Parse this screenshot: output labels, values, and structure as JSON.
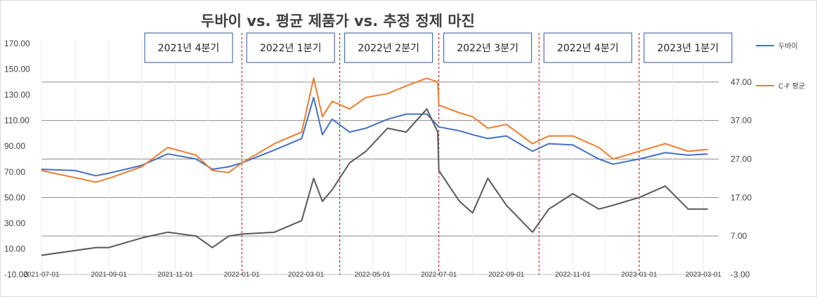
{
  "chart_data": {
    "type": "line",
    "title": "두바이 vs. 평균 제품가 vs. 추정 정제 마진",
    "x_ticks": [
      "2021-07-01",
      "2021-09-01",
      "2021-11-01",
      "2022-01-01",
      "2022-03-01",
      "2022-05-01",
      "2022-07-01",
      "2022-09-01",
      "2022-11-01",
      "2023-01-01",
      "2023-03-01"
    ],
    "x_range": [
      "2021-07-01",
      "2023-03-15"
    ],
    "y_left": {
      "ylim": [
        -10,
        170
      ],
      "ticks": [
        "-10.00",
        "10.00",
        "30.00",
        "50.00",
        "70.00",
        "90.00",
        "110.00",
        "130.00",
        "150.00",
        "170.00"
      ]
    },
    "y_right": {
      "ylim": [
        -3,
        57
      ],
      "ticks": [
        "-3.00",
        "7.00",
        "17.00",
        "27.00",
        "37.00",
        "47.00"
      ]
    },
    "quarters": [
      {
        "label": "2021년 4분기",
        "start": "2021-10-01"
      },
      {
        "label": "2022년 1분기",
        "start": "2022-01-01"
      },
      {
        "label": "2022년 2분기",
        "start": "2022-04-01"
      },
      {
        "label": "2022년 3분기",
        "start": "2022-07-01"
      },
      {
        "label": "2022년 4분기",
        "start": "2022-10-01"
      },
      {
        "label": "2023년 1분기",
        "start": "2023-01-01"
      }
    ],
    "series": [
      {
        "name": "두바이",
        "axis": "left",
        "color": "#4472c4",
        "points": [
          [
            "2021-07-01",
            72
          ],
          [
            "2021-08-01",
            71
          ],
          [
            "2021-08-20",
            67
          ],
          [
            "2021-09-01",
            69
          ],
          [
            "2021-10-01",
            75
          ],
          [
            "2021-10-25",
            84
          ],
          [
            "2021-11-20",
            80
          ],
          [
            "2021-12-05",
            72
          ],
          [
            "2021-12-20",
            74
          ],
          [
            "2022-01-01",
            77
          ],
          [
            "2022-01-31",
            87
          ],
          [
            "2022-02-25",
            96
          ],
          [
            "2022-03-08",
            128
          ],
          [
            "2022-03-16",
            99
          ],
          [
            "2022-03-25",
            111
          ],
          [
            "2022-04-10",
            101
          ],
          [
            "2022-04-25",
            104
          ],
          [
            "2022-05-15",
            111
          ],
          [
            "2022-06-01",
            115
          ],
          [
            "2022-06-20",
            115
          ],
          [
            "2022-07-01",
            105
          ],
          [
            "2022-07-20",
            102
          ],
          [
            "2022-08-01",
            99
          ],
          [
            "2022-08-15",
            96
          ],
          [
            "2022-09-01",
            98
          ],
          [
            "2022-09-25",
            86
          ],
          [
            "2022-10-10",
            92
          ],
          [
            "2022-11-01",
            91
          ],
          [
            "2022-11-25",
            80
          ],
          [
            "2022-12-08",
            76
          ],
          [
            "2023-01-01",
            80
          ],
          [
            "2023-01-25",
            85
          ],
          [
            "2023-02-15",
            83
          ],
          [
            "2023-03-05",
            84
          ]
        ]
      },
      {
        "name": "C-F 평균",
        "axis": "right",
        "color": "#ed7d31",
        "points": [
          [
            "2021-07-01",
            24
          ],
          [
            "2021-08-20",
            21
          ],
          [
            "2021-09-01",
            22
          ],
          [
            "2021-10-01",
            25
          ],
          [
            "2021-10-25",
            30
          ],
          [
            "2021-11-20",
            28
          ],
          [
            "2021-12-05",
            24
          ],
          [
            "2021-12-20",
            23.5
          ],
          [
            "2022-01-01",
            26
          ],
          [
            "2022-01-31",
            31
          ],
          [
            "2022-02-25",
            34
          ],
          [
            "2022-03-08",
            48
          ],
          [
            "2022-03-16",
            38
          ],
          [
            "2022-03-25",
            42
          ],
          [
            "2022-04-10",
            40
          ],
          [
            "2022-04-25",
            43
          ],
          [
            "2022-05-15",
            44
          ],
          [
            "2022-06-01",
            46
          ],
          [
            "2022-06-20",
            48
          ],
          [
            "2022-06-30",
            47
          ],
          [
            "2022-07-01",
            41
          ],
          [
            "2022-07-20",
            39
          ],
          [
            "2022-08-01",
            38
          ],
          [
            "2022-08-15",
            35
          ],
          [
            "2022-09-01",
            36
          ],
          [
            "2022-09-25",
            31
          ],
          [
            "2022-10-10",
            33
          ],
          [
            "2022-11-01",
            33
          ],
          [
            "2022-11-25",
            30
          ],
          [
            "2022-12-08",
            27
          ],
          [
            "2023-01-01",
            29
          ],
          [
            "2023-01-25",
            31
          ],
          [
            "2023-02-15",
            29
          ],
          [
            "2023-03-05",
            29.5
          ]
        ]
      },
      {
        "name": "",
        "axis": "right",
        "color": "#595959",
        "points": [
          [
            "2021-07-01",
            2
          ],
          [
            "2021-08-20",
            4
          ],
          [
            "2021-09-01",
            4
          ],
          [
            "2021-10-01",
            6.5
          ],
          [
            "2021-10-25",
            8
          ],
          [
            "2021-11-20",
            7
          ],
          [
            "2021-12-05",
            4
          ],
          [
            "2021-12-20",
            7
          ],
          [
            "2022-01-01",
            7.5
          ],
          [
            "2022-01-31",
            8
          ],
          [
            "2022-02-25",
            11
          ],
          [
            "2022-03-08",
            22
          ],
          [
            "2022-03-16",
            16
          ],
          [
            "2022-03-25",
            19
          ],
          [
            "2022-04-10",
            26
          ],
          [
            "2022-04-25",
            29
          ],
          [
            "2022-05-15",
            35
          ],
          [
            "2022-06-01",
            34
          ],
          [
            "2022-06-20",
            40
          ],
          [
            "2022-06-30",
            34
          ],
          [
            "2022-07-01",
            24
          ],
          [
            "2022-07-20",
            16
          ],
          [
            "2022-08-01",
            13
          ],
          [
            "2022-08-15",
            22
          ],
          [
            "2022-09-01",
            15
          ],
          [
            "2022-09-25",
            8
          ],
          [
            "2022-10-10",
            14
          ],
          [
            "2022-11-01",
            18
          ],
          [
            "2022-11-25",
            14
          ],
          [
            "2022-12-08",
            15
          ],
          [
            "2023-01-01",
            17
          ],
          [
            "2023-01-25",
            20
          ],
          [
            "2023-02-15",
            14
          ],
          [
            "2023-03-05",
            14
          ]
        ]
      }
    ],
    "legend": {
      "position": "right",
      "entries": [
        "두바이",
        "C-F 평균"
      ]
    }
  }
}
